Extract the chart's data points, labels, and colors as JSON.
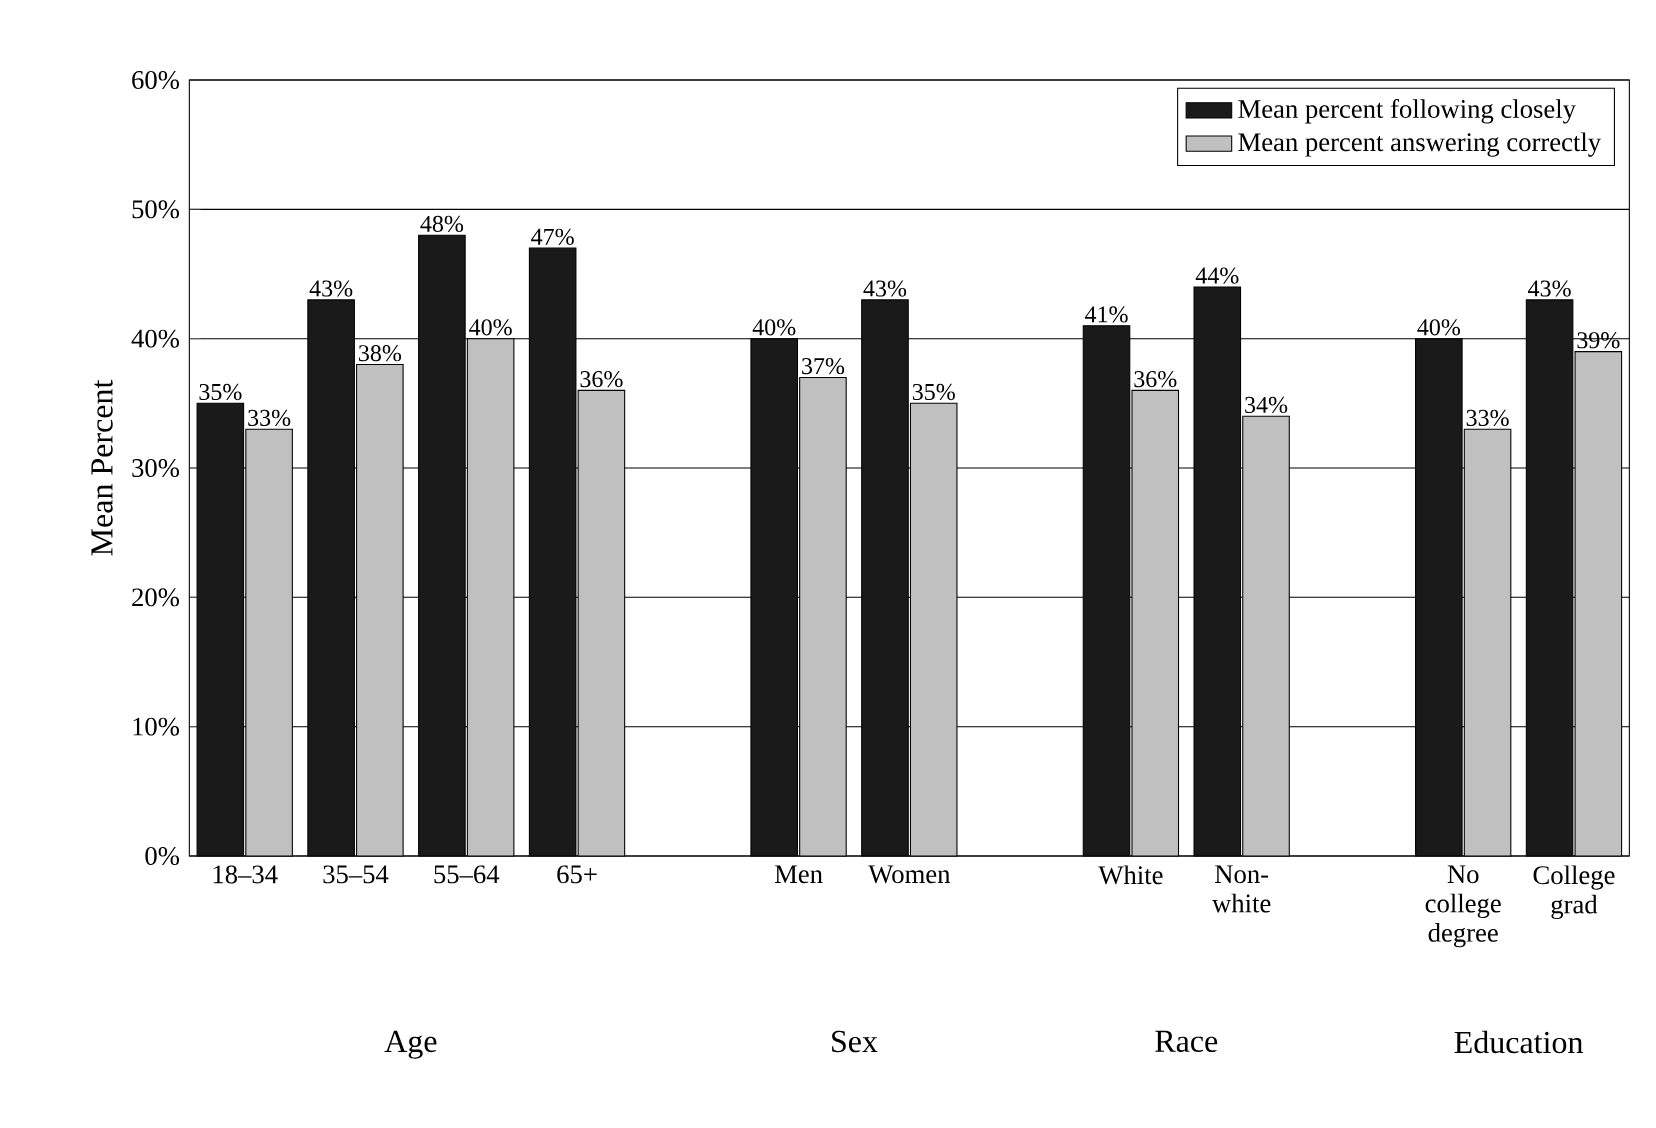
{
  "chart_data": {
    "type": "bar",
    "ylabel": "Mean Percent",
    "categories": [
      "18–34",
      "35–54",
      "55–64",
      "65+",
      null,
      "Men",
      "Women",
      null,
      "White",
      "Non-white",
      null,
      "No college degree",
      "College grad"
    ],
    "series": [
      {
        "name": "Mean percent following closely",
        "color": "#1a1a1a",
        "values": [
          35,
          43,
          48,
          47,
          null,
          40,
          43,
          null,
          41,
          44,
          null,
          40,
          43
        ],
        "value_labels": [
          "35%",
          "43%",
          "48%",
          "47%",
          null,
          "40%",
          "43%",
          null,
          "41%",
          "44%",
          null,
          "40%",
          "43%"
        ]
      },
      {
        "name": "Mean percent answering correctly",
        "color": "#c0c0c0",
        "values": [
          33,
          38,
          40,
          36,
          null,
          37,
          35,
          null,
          36,
          34,
          null,
          33,
          39
        ],
        "value_labels": [
          "33%",
          "38%",
          "40%",
          "36%",
          null,
          "37%",
          "35%",
          null,
          "36%",
          "34%",
          null,
          "33%",
          "39%"
        ]
      }
    ],
    "ylim": [
      0,
      60
    ],
    "yticks": [
      {
        "value": 0,
        "label": "0%"
      },
      {
        "value": 10,
        "label": "10%"
      },
      {
        "value": 20,
        "label": "20%"
      },
      {
        "value": 30,
        "label": "30%"
      },
      {
        "value": 40,
        "label": "40%"
      },
      {
        "value": 50,
        "label": "50%"
      },
      {
        "value": 60,
        "label": "60%"
      }
    ],
    "grid": "y",
    "legend": "top right",
    "annotations": [
      "Age",
      "Sex",
      "Race",
      "Education"
    ]
  }
}
